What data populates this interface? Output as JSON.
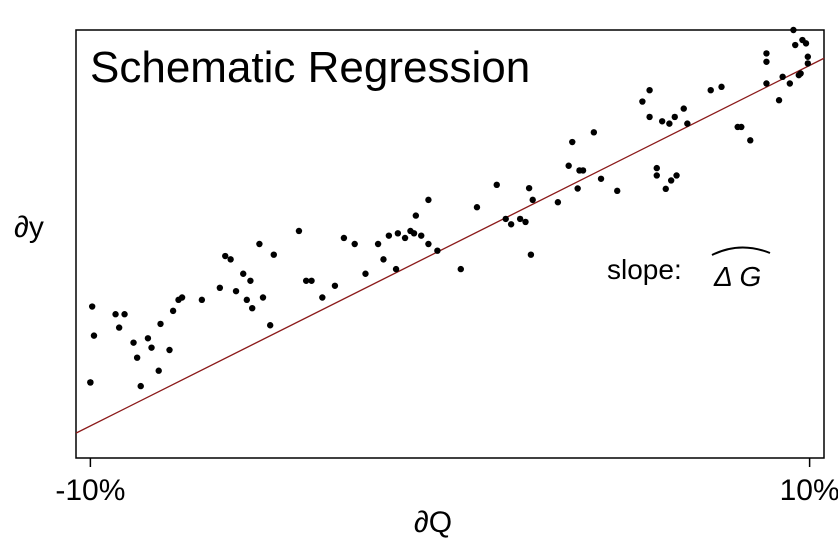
{
  "chart_data": {
    "type": "scatter",
    "title": "Schematic Regression",
    "xlabel": "∂Q",
    "ylabel": "∂y",
    "xlim": [
      -10.4,
      10.4
    ],
    "ylim": [
      -1.0,
      11.8
    ],
    "grid": false,
    "x_ticks": [
      {
        "value": -10,
        "label": "-10%"
      },
      {
        "value": 10,
        "label": "10%"
      }
    ],
    "annotation": {
      "prefix": "slope:",
      "symbol": "Δ G",
      "accent": "hat"
    },
    "fit_line": {
      "intercept": 5.35,
      "slope": 0.539,
      "color": "#8b1a1a"
    },
    "point_color": "#000000",
    "points": [
      {
        "x": -10.0,
        "y": 1.26
      },
      {
        "x": -10.0,
        "y": 1.26
      },
      {
        "x": -9.95,
        "y": 3.53
      },
      {
        "x": -9.9,
        "y": 2.66
      },
      {
        "x": -9.3,
        "y": 3.3
      },
      {
        "x": -9.2,
        "y": 2.9
      },
      {
        "x": -9.05,
        "y": 3.3
      },
      {
        "x": -8.8,
        "y": 2.45
      },
      {
        "x": -8.7,
        "y": 2.0
      },
      {
        "x": -8.6,
        "y": 1.15
      },
      {
        "x": -8.4,
        "y": 2.58
      },
      {
        "x": -8.3,
        "y": 2.3
      },
      {
        "x": -8.1,
        "y": 1.61
      },
      {
        "x": -8.05,
        "y": 3.01
      },
      {
        "x": -7.8,
        "y": 2.23
      },
      {
        "x": -7.7,
        "y": 3.4
      },
      {
        "x": -7.55,
        "y": 3.73
      },
      {
        "x": -7.45,
        "y": 3.8
      },
      {
        "x": -6.9,
        "y": 3.73
      },
      {
        "x": -6.4,
        "y": 4.09
      },
      {
        "x": -6.25,
        "y": 5.04
      },
      {
        "x": -6.1,
        "y": 4.94
      },
      {
        "x": -5.95,
        "y": 3.99
      },
      {
        "x": -5.75,
        "y": 4.51
      },
      {
        "x": -5.65,
        "y": 3.73
      },
      {
        "x": -5.55,
        "y": 4.3
      },
      {
        "x": -5.5,
        "y": 3.48
      },
      {
        "x": -5.3,
        "y": 5.4
      },
      {
        "x": -5.2,
        "y": 3.8
      },
      {
        "x": -5.0,
        "y": 2.97
      },
      {
        "x": -4.9,
        "y": 5.08
      },
      {
        "x": -4.2,
        "y": 5.79
      },
      {
        "x": -4.0,
        "y": 4.3
      },
      {
        "x": -3.85,
        "y": 4.3
      },
      {
        "x": -3.55,
        "y": 3.8
      },
      {
        "x": -3.2,
        "y": 4.15
      },
      {
        "x": -2.95,
        "y": 5.58
      },
      {
        "x": -2.65,
        "y": 5.4
      },
      {
        "x": -2.35,
        "y": 4.51
      },
      {
        "x": -2.0,
        "y": 5.4
      },
      {
        "x": -1.85,
        "y": 4.94
      },
      {
        "x": -1.7,
        "y": 5.65
      },
      {
        "x": -1.5,
        "y": 4.65
      },
      {
        "x": -1.45,
        "y": 5.72
      },
      {
        "x": -1.25,
        "y": 5.58
      },
      {
        "x": -1.1,
        "y": 5.79
      },
      {
        "x": -1.0,
        "y": 5.72
      },
      {
        "x": -0.95,
        "y": 6.25
      },
      {
        "x": -0.8,
        "y": 5.65
      },
      {
        "x": -0.6,
        "y": 6.72
      },
      {
        "x": -0.6,
        "y": 5.4
      },
      {
        "x": -0.35,
        "y": 5.2
      },
      {
        "x": 0.3,
        "y": 4.65
      },
      {
        "x": 0.75,
        "y": 6.5
      },
      {
        "x": 1.3,
        "y": 7.17
      },
      {
        "x": 1.55,
        "y": 6.15
      },
      {
        "x": 1.7,
        "y": 5.99
      },
      {
        "x": 1.95,
        "y": 6.15
      },
      {
        "x": 2.1,
        "y": 6.06
      },
      {
        "x": 2.2,
        "y": 7.07
      },
      {
        "x": 2.25,
        "y": 5.08
      },
      {
        "x": 2.3,
        "y": 6.72
      },
      {
        "x": 3.0,
        "y": 6.65
      },
      {
        "x": 3.3,
        "y": 7.74
      },
      {
        "x": 3.4,
        "y": 8.45
      },
      {
        "x": 3.55,
        "y": 7.06
      },
      {
        "x": 3.6,
        "y": 7.6
      },
      {
        "x": 3.7,
        "y": 7.6
      },
      {
        "x": 4.0,
        "y": 8.74
      },
      {
        "x": 4.2,
        "y": 7.35
      },
      {
        "x": 4.65,
        "y": 6.99
      },
      {
        "x": 5.35,
        "y": 9.66
      },
      {
        "x": 5.55,
        "y": 10.0
      },
      {
        "x": 5.55,
        "y": 9.2
      },
      {
        "x": 5.75,
        "y": 7.67
      },
      {
        "x": 5.75,
        "y": 7.45
      },
      {
        "x": 5.9,
        "y": 9.07
      },
      {
        "x": 6.0,
        "y": 7.05
      },
      {
        "x": 6.1,
        "y": 9.0
      },
      {
        "x": 6.15,
        "y": 7.3
      },
      {
        "x": 6.25,
        "y": 9.2
      },
      {
        "x": 6.3,
        "y": 7.45
      },
      {
        "x": 6.5,
        "y": 9.45
      },
      {
        "x": 6.6,
        "y": 9.0
      },
      {
        "x": 7.25,
        "y": 10.0
      },
      {
        "x": 7.55,
        "y": 10.1
      },
      {
        "x": 8.0,
        "y": 8.9
      },
      {
        "x": 8.1,
        "y": 8.9
      },
      {
        "x": 8.35,
        "y": 8.5
      },
      {
        "x": 8.8,
        "y": 10.2
      },
      {
        "x": 8.8,
        "y": 11.1
      },
      {
        "x": 8.8,
        "y": 10.85
      },
      {
        "x": 9.15,
        "y": 9.7
      },
      {
        "x": 9.25,
        "y": 10.4
      },
      {
        "x": 9.45,
        "y": 10.2
      },
      {
        "x": 9.55,
        "y": 12.1
      },
      {
        "x": 9.6,
        "y": 11.35
      },
      {
        "x": 9.7,
        "y": 10.45
      },
      {
        "x": 9.75,
        "y": 10.5
      },
      {
        "x": 9.8,
        "y": 11.5
      },
      {
        "x": 9.9,
        "y": 11.4
      },
      {
        "x": 9.95,
        "y": 10.8
      },
      {
        "x": 9.95,
        "y": 11.0
      }
    ]
  }
}
